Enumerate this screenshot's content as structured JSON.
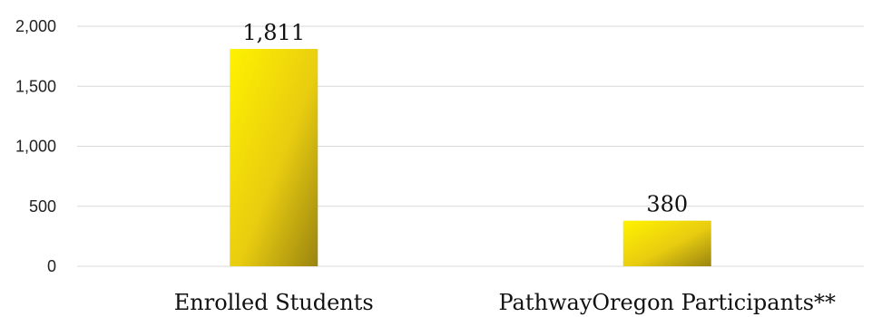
{
  "chart_data": {
    "type": "bar",
    "categories": [
      "Enrolled Students",
      "PathwayOregon Participants**"
    ],
    "values": [
      1811,
      380
    ],
    "data_labels": [
      "1,811",
      "380"
    ],
    "title": "",
    "xlabel": "",
    "ylabel": "",
    "ylim": [
      0,
      2000
    ],
    "yticks": [
      0,
      500,
      1000,
      1500,
      2000
    ],
    "ytick_labels": [
      "0",
      "500",
      "1,000",
      "1,500",
      "2,000"
    ],
    "grid": true,
    "legend": "none",
    "colors": {
      "bar_light": "#fff200",
      "bar_mid": "#e8cc10",
      "bar_dark": "#9a8410",
      "grid": "#d9d9d9"
    }
  }
}
